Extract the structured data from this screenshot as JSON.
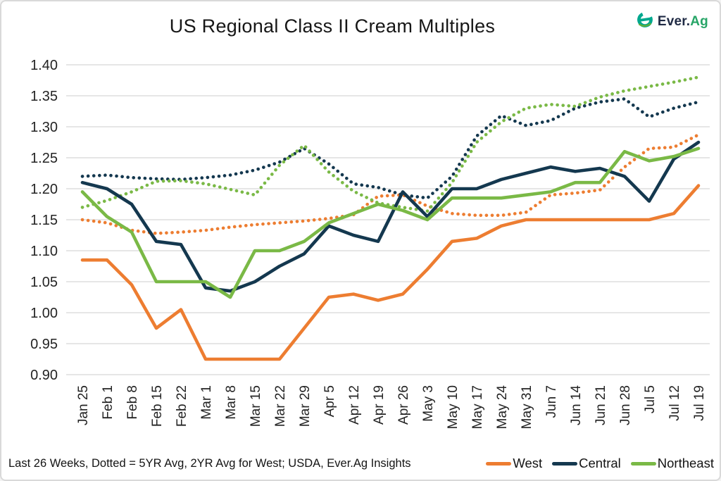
{
  "header": {
    "title": "US Regional Class II Cream Multiples",
    "logo": {
      "prefix": "Ever.",
      "suffix": "Ag"
    }
  },
  "footer": {
    "note": "Last 26 Weeks, Dotted = 5YR Avg, 2YR Avg for West; USDA, Ever.Ag Insights"
  },
  "legend": [
    {
      "label": "West",
      "color": "#ED7D31"
    },
    {
      "label": "Central",
      "color": "#14384F"
    },
    {
      "label": "Northeast",
      "color": "#7AB946"
    }
  ],
  "colors": {
    "west": "#ED7D31",
    "central": "#14384F",
    "northeast": "#7AB946",
    "gridline": "#d7d7d7",
    "logo_teal": "#00a88e",
    "logo_navy": "#1f2a44",
    "logo_green": "#27a567"
  },
  "chart_data": {
    "type": "line",
    "title": "US Regional Class II Cream Multiples",
    "xlabel": "",
    "ylabel": "",
    "ylim": [
      0.9,
      1.4
    ],
    "ytick_step": 0.05,
    "y_ticks": [
      "0.90",
      "0.95",
      "1.00",
      "1.05",
      "1.10",
      "1.15",
      "1.20",
      "1.25",
      "1.30",
      "1.35",
      "1.40"
    ],
    "grid": "horizontal",
    "legend_position": "bottom-right",
    "x": [
      "Jan 25",
      "Feb 1",
      "Feb 8",
      "Feb 15",
      "Feb 22",
      "Mar 1",
      "Mar 8",
      "Mar 15",
      "Mar 22",
      "Mar 29",
      "Apr 5",
      "Apr 12",
      "Apr 19",
      "Apr 26",
      "May 3",
      "May 10",
      "May 17",
      "May 24",
      "May 31",
      "Jun 7",
      "Jun 14",
      "Jun 21",
      "Jun 28",
      "Jul 5",
      "Jul 12",
      "Jul 19"
    ],
    "series": [
      {
        "name": "West 2YR Avg",
        "key": "west-2yr-avg",
        "style": "dotted",
        "color": "#ED7D31",
        "values": [
          1.15,
          1.145,
          1.133,
          1.128,
          1.13,
          1.133,
          1.138,
          1.142,
          1.145,
          1.148,
          1.152,
          1.158,
          1.188,
          1.19,
          1.172,
          1.16,
          1.157,
          1.157,
          1.162,
          1.19,
          1.193,
          1.198,
          1.235,
          1.265,
          1.267,
          1.287
        ]
      },
      {
        "name": "Central 5YR Avg",
        "key": "central-5yr-avg",
        "style": "dotted",
        "color": "#14384F",
        "values": [
          1.22,
          1.222,
          1.218,
          1.216,
          1.215,
          1.218,
          1.222,
          1.23,
          1.243,
          1.265,
          1.24,
          1.208,
          1.202,
          1.19,
          1.185,
          1.22,
          1.285,
          1.318,
          1.302,
          1.31,
          1.33,
          1.34,
          1.345,
          1.316,
          1.33,
          1.34
        ]
      },
      {
        "name": "Northeast 5YR Avg",
        "key": "northeast-5yr-avg",
        "style": "dotted",
        "color": "#7AB946",
        "values": [
          1.17,
          1.181,
          1.195,
          1.212,
          1.213,
          1.208,
          1.199,
          1.19,
          1.238,
          1.27,
          1.227,
          1.196,
          1.177,
          1.17,
          1.164,
          1.21,
          1.275,
          1.308,
          1.33,
          1.336,
          1.333,
          1.348,
          1.358,
          1.365,
          1.372,
          1.38
        ]
      },
      {
        "name": "West",
        "key": "west",
        "style": "solid",
        "color": "#ED7D31",
        "values": [
          1.085,
          1.085,
          1.045,
          0.975,
          1.005,
          0.925,
          0.925,
          0.925,
          0.925,
          0.975,
          1.025,
          1.03,
          1.02,
          1.03,
          1.07,
          1.115,
          1.12,
          1.14,
          1.15,
          1.15,
          1.15,
          1.15,
          1.15,
          1.15,
          1.16,
          1.205
        ]
      },
      {
        "name": "Central",
        "key": "central",
        "style": "solid",
        "color": "#14384F",
        "values": [
          1.21,
          1.2,
          1.175,
          1.115,
          1.11,
          1.04,
          1.035,
          1.05,
          1.075,
          1.095,
          1.14,
          1.125,
          1.115,
          1.195,
          1.155,
          1.2,
          1.2,
          1.215,
          1.225,
          1.235,
          1.228,
          1.233,
          1.22,
          1.18,
          1.248,
          1.275
        ]
      },
      {
        "name": "Northeast",
        "key": "northeast",
        "style": "solid",
        "color": "#7AB946",
        "values": [
          1.195,
          1.155,
          1.13,
          1.05,
          1.05,
          1.05,
          1.025,
          1.1,
          1.1,
          1.115,
          1.145,
          1.16,
          1.175,
          1.165,
          1.15,
          1.185,
          1.185,
          1.185,
          1.19,
          1.195,
          1.21,
          1.21,
          1.26,
          1.245,
          1.252,
          1.265
        ]
      }
    ]
  }
}
